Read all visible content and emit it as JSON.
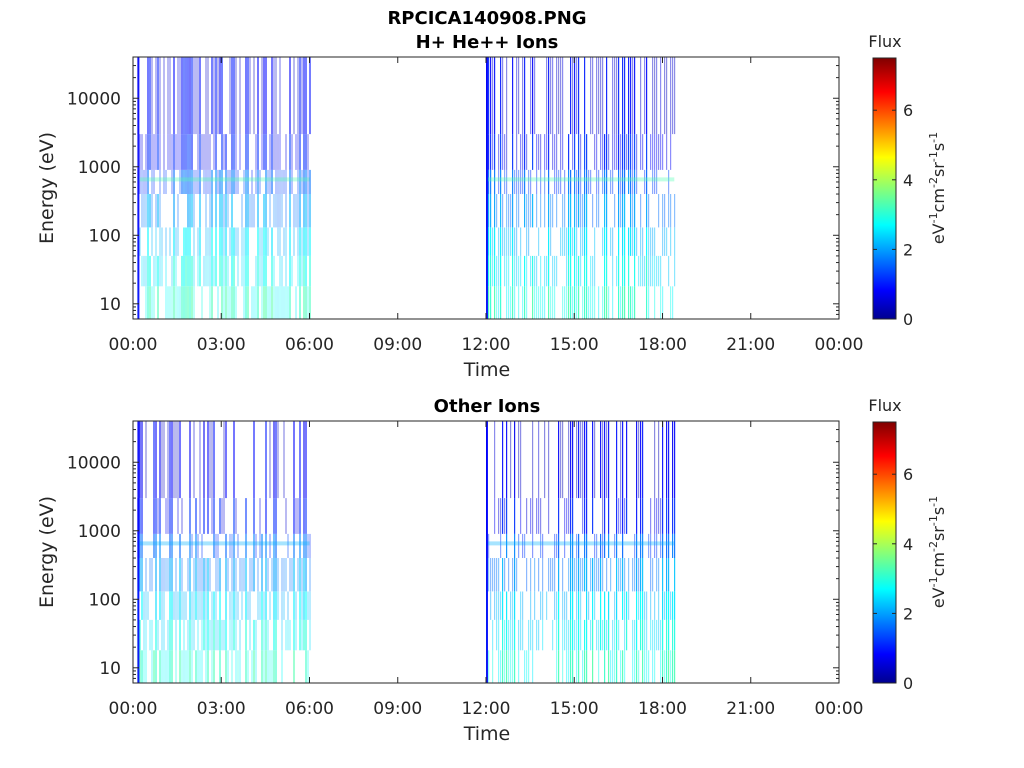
{
  "figure": {
    "title_line1": "RPCICA140908.PNG"
  },
  "chart_data": [
    {
      "type": "heatmap",
      "title": "H+ He++ Ions",
      "xlabel": "Time",
      "ylabel": "Energy (eV)",
      "x_ticks": [
        "00:00",
        "03:00",
        "06:00",
        "09:00",
        "12:00",
        "15:00",
        "18:00",
        "21:00",
        "00:00"
      ],
      "x_range_hours": [
        0,
        24
      ],
      "y_scale": "log",
      "y_ticks": [
        10,
        100,
        1000,
        10000
      ],
      "y_tick_labels": [
        "10",
        "100",
        "1000",
        "10000"
      ],
      "y_range": [
        6,
        40000
      ],
      "grid": false,
      "data_segments_hours": [
        [
          0.15,
          6.0
        ],
        [
          12.0,
          18.4
        ]
      ],
      "colorbar": {
        "title": "Flux",
        "label_parts": [
          "eV",
          "-1",
          "cm",
          "-2",
          "sr",
          "-1",
          "s",
          "-1"
        ],
        "range": [
          0,
          7.5
        ],
        "ticks": [
          0,
          2,
          4,
          6
        ],
        "colormap": "jet"
      }
    },
    {
      "type": "heatmap",
      "title": "Other Ions",
      "xlabel": "Time",
      "ylabel": "Energy (eV)",
      "x_ticks": [
        "00:00",
        "03:00",
        "06:00",
        "09:00",
        "12:00",
        "15:00",
        "18:00",
        "21:00",
        "00:00"
      ],
      "x_range_hours": [
        0,
        24
      ],
      "y_scale": "log",
      "y_ticks": [
        10,
        100,
        1000,
        10000
      ],
      "y_tick_labels": [
        "10",
        "100",
        "1000",
        "10000"
      ],
      "y_range": [
        6,
        40000
      ],
      "grid": false,
      "data_segments_hours": [
        [
          0.15,
          6.0
        ],
        [
          12.0,
          18.4
        ]
      ],
      "colorbar": {
        "title": "Flux",
        "label_parts": [
          "eV",
          "-1",
          "cm",
          "-2",
          "sr",
          "-1",
          "s",
          "-1"
        ],
        "range": [
          0,
          7.5
        ],
        "ticks": [
          0,
          2,
          4,
          6
        ],
        "colormap": "jet"
      }
    }
  ]
}
